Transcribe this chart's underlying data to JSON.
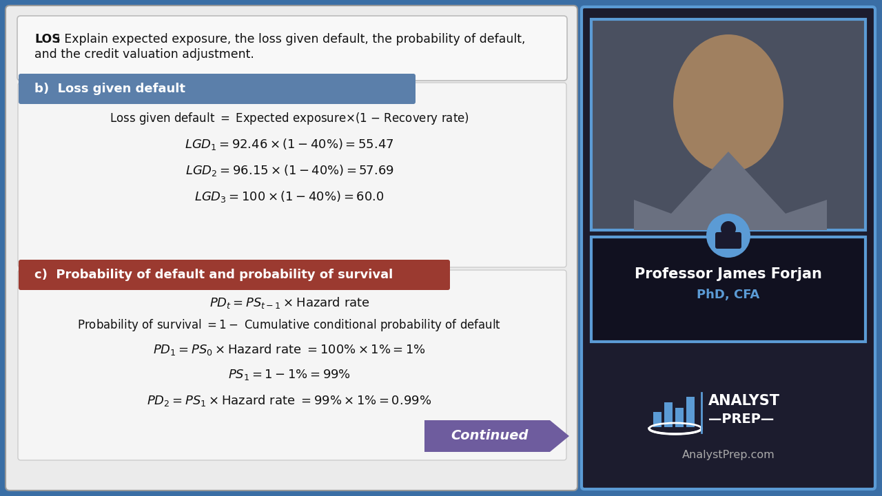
{
  "bg_color": "#3a6ea5",
  "left_panel_bg": "#ebebeb",
  "los_box_bg": "#f8f8f8",
  "los_box_border": "#bbbbbb",
  "section_b_header_bg": "#5b7faa",
  "section_b_header_text": "b)  Loss given default",
  "section_b_content_bg": "#dde4ed",
  "section_c_header_bg": "#9b3a30",
  "section_c_header_text": "c)  Probability of default and probability of survival",
  "section_c_content_bg": "#dde4ed",
  "continued_bg": "#6e5c9e",
  "continued_text": "Continued",
  "professor_name": "Professor James Forjan",
  "professor_title": "PhD, CFA",
  "website": "AnalystPrep.com",
  "right_panel_bg": "#1c1c2e",
  "right_border_color": "#5b9bd5",
  "video_bg": "#5a6070",
  "name_card_bg": "#111120"
}
